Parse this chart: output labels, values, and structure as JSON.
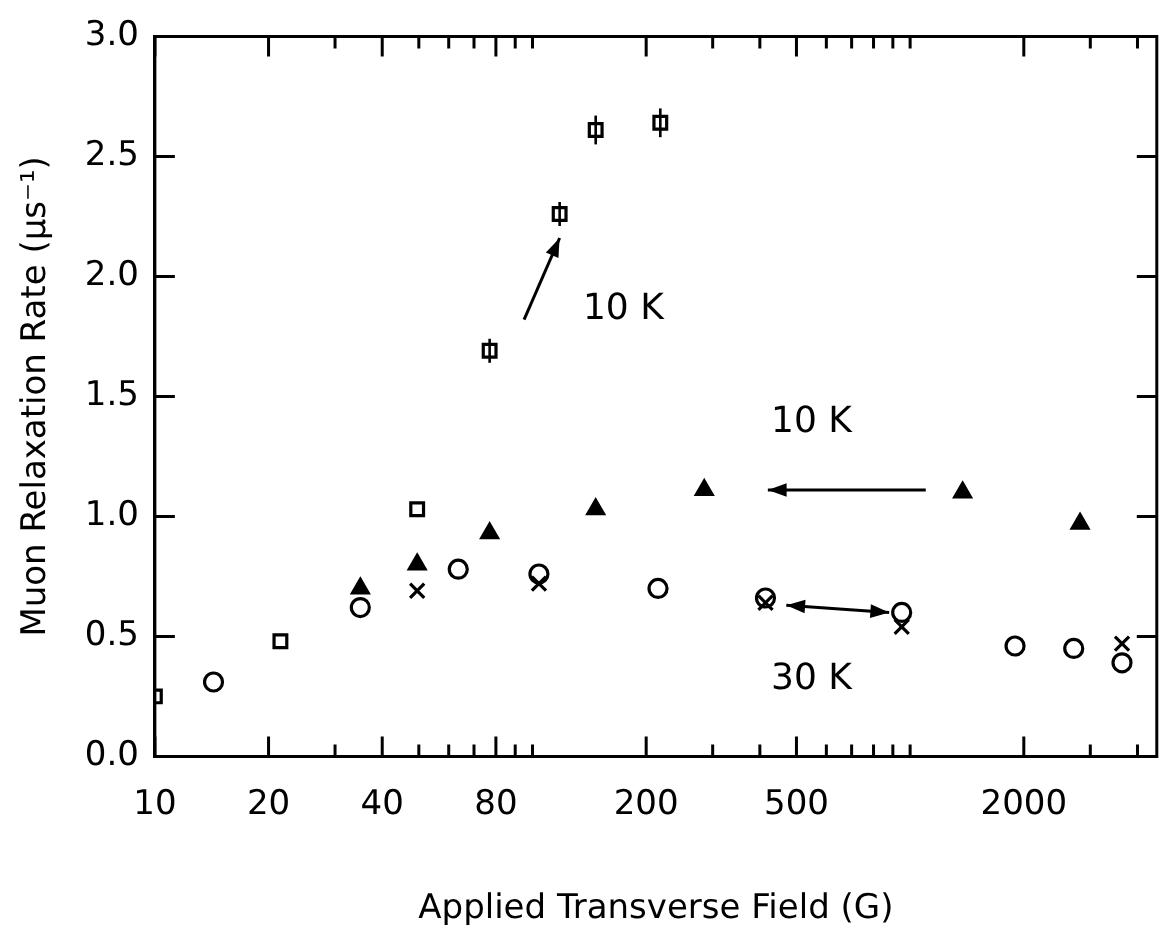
{
  "chart_data": {
    "type": "scatter",
    "xlabel": "Applied Transverse Field (G)",
    "ylabel": "Muon Relaxation Rate (μs⁻¹)",
    "log": "x",
    "xlim": [
      10,
      4500
    ],
    "ylim": [
      0,
      3
    ],
    "xticks": [
      10,
      20,
      {
        "value": 30,
        "label": null
      },
      40,
      {
        "value": 50,
        "label": null
      },
      {
        "value": 60,
        "label": null
      },
      {
        "value": 70,
        "label": null
      },
      80,
      {
        "value": 90,
        "label": null
      },
      {
        "value": 100,
        "label": null
      },
      200,
      {
        "value": 300,
        "label": null
      },
      {
        "value": 400,
        "label": null
      },
      500,
      {
        "value": 600,
        "label": null
      },
      {
        "value": 700,
        "label": null
      },
      {
        "value": 800,
        "label": null
      },
      {
        "value": 900,
        "label": null
      },
      {
        "value": 1000,
        "label": null
      },
      2000,
      {
        "value": 3000,
        "label": null
      },
      {
        "value": 4000,
        "label": null
      }
    ],
    "yticks": [
      {
        "value": 0,
        "label": "0.0"
      },
      {
        "value": 0.5,
        "label": "0.5"
      },
      {
        "value": 1,
        "label": "1.0"
      },
      {
        "value": 1.5,
        "label": "1.5"
      },
      {
        "value": 2,
        "label": "2.0"
      },
      {
        "value": 2.5,
        "label": "2.5"
      },
      {
        "value": 3,
        "label": "3.0"
      }
    ],
    "grid": false,
    "legend": false,
    "series": [
      {
        "color": "#000000",
        "marker": "square",
        "x": [
          10,
          21.5,
          49.5,
          77,
          118,
          147,
          218
        ],
        "values": [
          0.25,
          0.48,
          1.03,
          1.69,
          2.26,
          2.61,
          2.64
        ],
        "errors": [
          null,
          null,
          null,
          0.05,
          0.05,
          0.06,
          0.06
        ]
      },
      {
        "color": "#000000",
        "marker": "triangle",
        "x": [
          35,
          49.5,
          77,
          147,
          285,
          1377,
          2818
        ],
        "values": [
          0.7,
          0.8,
          0.93,
          1.03,
          1.11,
          1.1,
          0.97
        ]
      },
      {
        "color": "#000000",
        "marker": "circle",
        "x": [
          14.3,
          35,
          63.6,
          104,
          215,
          414,
          950,
          1896,
          2712,
          3640
        ],
        "values": [
          0.31,
          0.62,
          0.78,
          0.76,
          0.7,
          0.66,
          0.6,
          0.46,
          0.45,
          0.39
        ]
      },
      {
        "color": "#000000",
        "marker": "cross",
        "x": [
          49.5,
          104,
          414,
          950,
          3640
        ],
        "values": [
          0.69,
          0.72,
          0.64,
          0.54,
          0.47
        ]
      }
    ],
    "annotations": [
      "10 K",
      "10 K",
      "30 K"
    ]
  }
}
